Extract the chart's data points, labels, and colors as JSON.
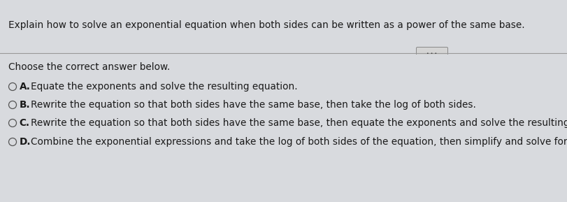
{
  "question": "Explain how to solve an exponential equation when both sides can be written as a power of the same base.",
  "prompt": "Choose the correct answer below.",
  "options": [
    {
      "label": "A.",
      "text": "  Equate the exponents and solve the resulting equation."
    },
    {
      "label": "B.",
      "text": "  Rewrite the equation so that both sides have the same base, then take the log of both sides."
    },
    {
      "label": "C.",
      "text": "  Rewrite the equation so that both sides have the same base, then equate the exponents and solve the resulting equation."
    },
    {
      "label": "D.",
      "text": "  Combine the exponential expressions and take the log of both sides of the equation, then simplify and solve for the variable."
    }
  ],
  "bg_top": "#b8bfc8",
  "bg_bottom": "#d8dade",
  "divider_color": "#999999",
  "question_fontsize": 9.8,
  "option_fontsize": 9.8,
  "prompt_fontsize": 9.8,
  "text_color": "#1a1a1a",
  "circle_color": "#555555",
  "dots_button_bg": "#d4d4d4",
  "dots_button_border": "#888888",
  "dots_color": "#333333"
}
